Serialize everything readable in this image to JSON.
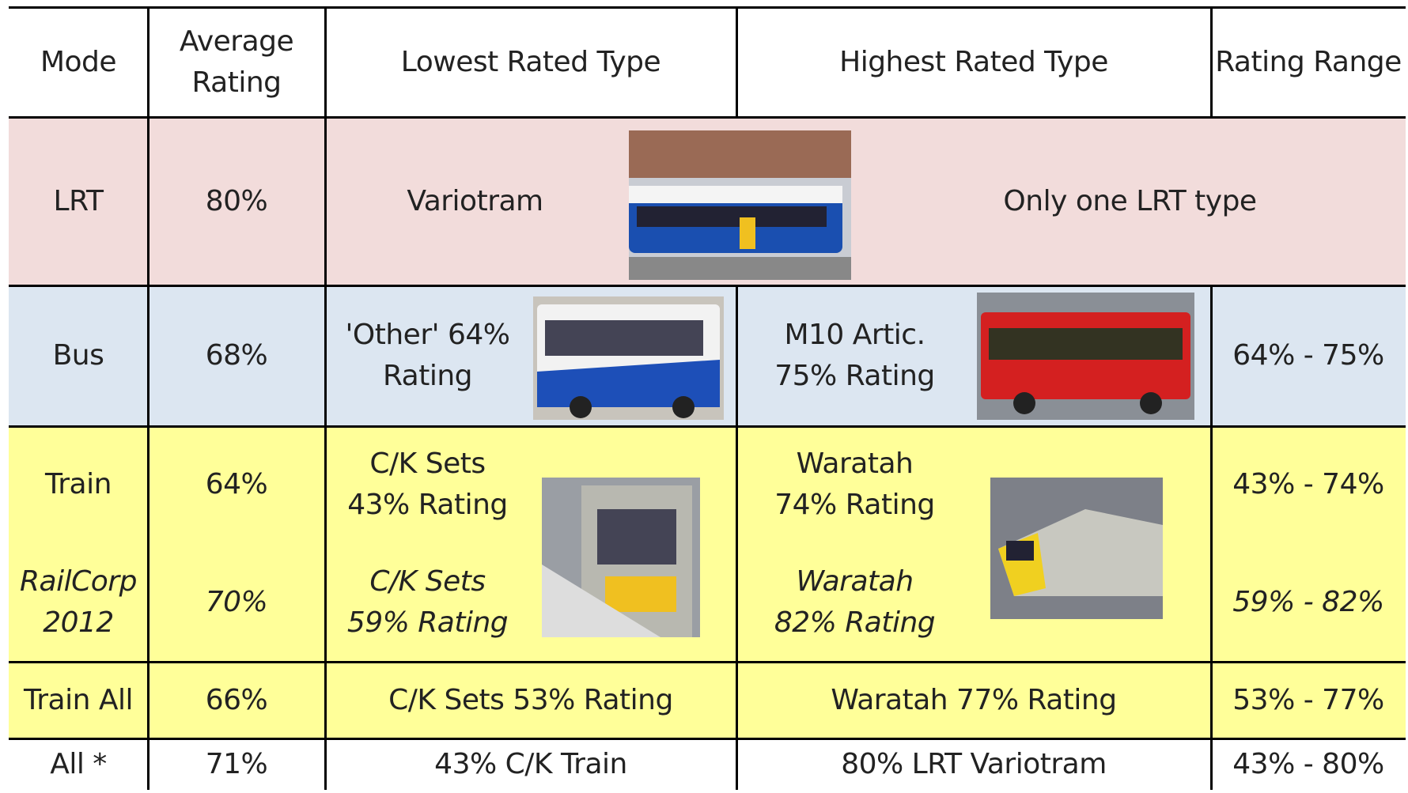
{
  "table": {
    "header": [
      [
        "Mode"
      ],
      [
        "Average",
        "Rating"
      ],
      [
        "Lowest Rated Type"
      ],
      [
        "Highest Rated Type"
      ],
      [
        "Rating Range"
      ]
    ],
    "rows": [
      {
        "mode": [
          "LRT"
        ],
        "average": "80%",
        "lowest": [
          "Variotram"
        ],
        "highest": [
          "Only one LRT type"
        ]
      },
      {
        "mode": [
          "Bus"
        ],
        "average": "68%",
        "lowest": [
          "'Other' 64%",
          "Rating"
        ],
        "highest": [
          "M10 Artic.",
          "75% Rating"
        ],
        "range": "64% - 75%"
      },
      {
        "mode": [
          "Train"
        ],
        "average": "64%",
        "lowest": [
          "C/K Sets",
          "43% Rating"
        ],
        "highest": [
          "Waratah",
          "74% Rating"
        ],
        "range": "43% - 74%"
      },
      {
        "mode": [
          "RailCorp",
          "2012"
        ],
        "average": "70%",
        "lowest": [
          "C/K Sets",
          "59% Rating"
        ],
        "highest": [
          "Waratah",
          "82% Rating"
        ],
        "range": "59% - 82%"
      },
      {
        "mode": [
          "Train All"
        ],
        "average": "66%",
        "lowest": [
          "C/K Sets 53% Rating"
        ],
        "highest": [
          "Waratah 77% Rating"
        ],
        "range": "53% - 77%"
      },
      {
        "mode": [
          "All *"
        ],
        "average": "71%",
        "lowest": [
          "43% C/K Train"
        ],
        "highest": [
          "80% LRT Variotram"
        ],
        "range": "43% - 80%"
      }
    ]
  }
}
